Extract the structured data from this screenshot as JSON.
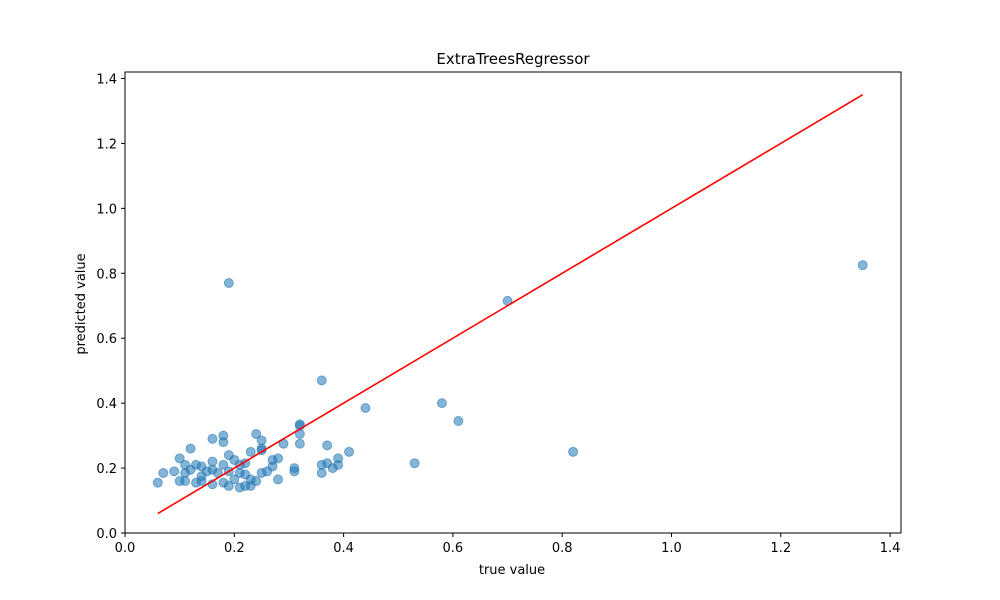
{
  "chart_data": {
    "type": "scatter",
    "title": "ExtraTreesRegressor",
    "xlabel": "true value",
    "ylabel": "predicted value",
    "xlim": [
      0.0,
      1.42
    ],
    "ylim": [
      0.0,
      1.42
    ],
    "x_ticks": [
      "0.0",
      "0.2",
      "0.4",
      "0.6",
      "0.8",
      "1.0",
      "1.2",
      "1.4"
    ],
    "y_ticks": [
      "0.0",
      "0.2",
      "0.4",
      "0.6",
      "0.8",
      "1.0",
      "1.2",
      "1.4"
    ],
    "grid": false,
    "point_color": "#1f77b4",
    "point_alpha": 0.55,
    "line_color": "#ff0000",
    "reference_line": {
      "x": [
        0.06,
        1.35
      ],
      "y": [
        0.06,
        1.35
      ]
    },
    "points": [
      {
        "x": 0.06,
        "y": 0.155
      },
      {
        "x": 0.07,
        "y": 0.185
      },
      {
        "x": 0.09,
        "y": 0.19
      },
      {
        "x": 0.1,
        "y": 0.23
      },
      {
        "x": 0.1,
        "y": 0.16
      },
      {
        "x": 0.11,
        "y": 0.21
      },
      {
        "x": 0.11,
        "y": 0.185
      },
      {
        "x": 0.11,
        "y": 0.16
      },
      {
        "x": 0.12,
        "y": 0.26
      },
      {
        "x": 0.12,
        "y": 0.195
      },
      {
        "x": 0.13,
        "y": 0.21
      },
      {
        "x": 0.13,
        "y": 0.155
      },
      {
        "x": 0.14,
        "y": 0.205
      },
      {
        "x": 0.14,
        "y": 0.175
      },
      {
        "x": 0.14,
        "y": 0.16
      },
      {
        "x": 0.15,
        "y": 0.19
      },
      {
        "x": 0.16,
        "y": 0.29
      },
      {
        "x": 0.16,
        "y": 0.22
      },
      {
        "x": 0.16,
        "y": 0.195
      },
      {
        "x": 0.16,
        "y": 0.15
      },
      {
        "x": 0.17,
        "y": 0.185
      },
      {
        "x": 0.18,
        "y": 0.3
      },
      {
        "x": 0.18,
        "y": 0.28
      },
      {
        "x": 0.18,
        "y": 0.21
      },
      {
        "x": 0.18,
        "y": 0.155
      },
      {
        "x": 0.19,
        "y": 0.77
      },
      {
        "x": 0.19,
        "y": 0.24
      },
      {
        "x": 0.19,
        "y": 0.19
      },
      {
        "x": 0.19,
        "y": 0.145
      },
      {
        "x": 0.2,
        "y": 0.225
      },
      {
        "x": 0.2,
        "y": 0.165
      },
      {
        "x": 0.21,
        "y": 0.21
      },
      {
        "x": 0.21,
        "y": 0.185
      },
      {
        "x": 0.21,
        "y": 0.14
      },
      {
        "x": 0.22,
        "y": 0.215
      },
      {
        "x": 0.22,
        "y": 0.18
      },
      {
        "x": 0.22,
        "y": 0.145
      },
      {
        "x": 0.23,
        "y": 0.25
      },
      {
        "x": 0.23,
        "y": 0.165
      },
      {
        "x": 0.23,
        "y": 0.145
      },
      {
        "x": 0.24,
        "y": 0.305
      },
      {
        "x": 0.24,
        "y": 0.16
      },
      {
        "x": 0.25,
        "y": 0.285
      },
      {
        "x": 0.25,
        "y": 0.26
      },
      {
        "x": 0.25,
        "y": 0.255
      },
      {
        "x": 0.25,
        "y": 0.185
      },
      {
        "x": 0.26,
        "y": 0.19
      },
      {
        "x": 0.27,
        "y": 0.225
      },
      {
        "x": 0.27,
        "y": 0.205
      },
      {
        "x": 0.28,
        "y": 0.23
      },
      {
        "x": 0.28,
        "y": 0.165
      },
      {
        "x": 0.29,
        "y": 0.275
      },
      {
        "x": 0.31,
        "y": 0.2
      },
      {
        "x": 0.31,
        "y": 0.19
      },
      {
        "x": 0.32,
        "y": 0.335
      },
      {
        "x": 0.32,
        "y": 0.33
      },
      {
        "x": 0.32,
        "y": 0.305
      },
      {
        "x": 0.32,
        "y": 0.275
      },
      {
        "x": 0.36,
        "y": 0.47
      },
      {
        "x": 0.36,
        "y": 0.21
      },
      {
        "x": 0.36,
        "y": 0.185
      },
      {
        "x": 0.37,
        "y": 0.27
      },
      {
        "x": 0.37,
        "y": 0.215
      },
      {
        "x": 0.38,
        "y": 0.2
      },
      {
        "x": 0.39,
        "y": 0.23
      },
      {
        "x": 0.39,
        "y": 0.21
      },
      {
        "x": 0.41,
        "y": 0.25
      },
      {
        "x": 0.44,
        "y": 0.385
      },
      {
        "x": 0.53,
        "y": 0.215
      },
      {
        "x": 0.58,
        "y": 0.4
      },
      {
        "x": 0.61,
        "y": 0.345
      },
      {
        "x": 0.7,
        "y": 0.715
      },
      {
        "x": 0.82,
        "y": 0.25
      },
      {
        "x": 1.35,
        "y": 0.825
      }
    ]
  }
}
